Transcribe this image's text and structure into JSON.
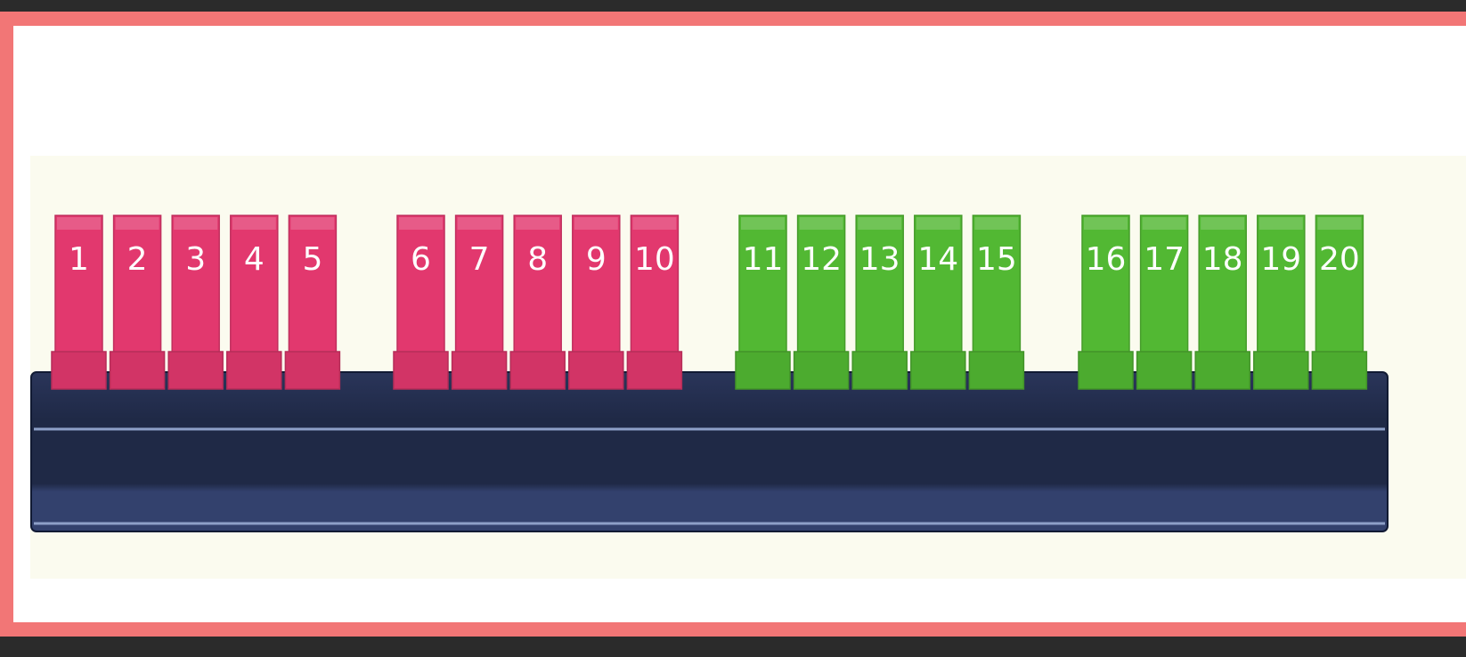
{
  "groups": [
    {
      "color": "#e2386e",
      "blocks": [
        "1",
        "2",
        "3",
        "4",
        "5"
      ]
    },
    {
      "color": "#e2386e",
      "blocks": [
        "6",
        "7",
        "8",
        "9",
        "10"
      ]
    },
    {
      "color": "#52b833",
      "blocks": [
        "11",
        "12",
        "13",
        "14",
        "15"
      ]
    },
    {
      "color": "#52b833",
      "blocks": [
        "16",
        "17",
        "18",
        "19",
        "20"
      ]
    }
  ]
}
